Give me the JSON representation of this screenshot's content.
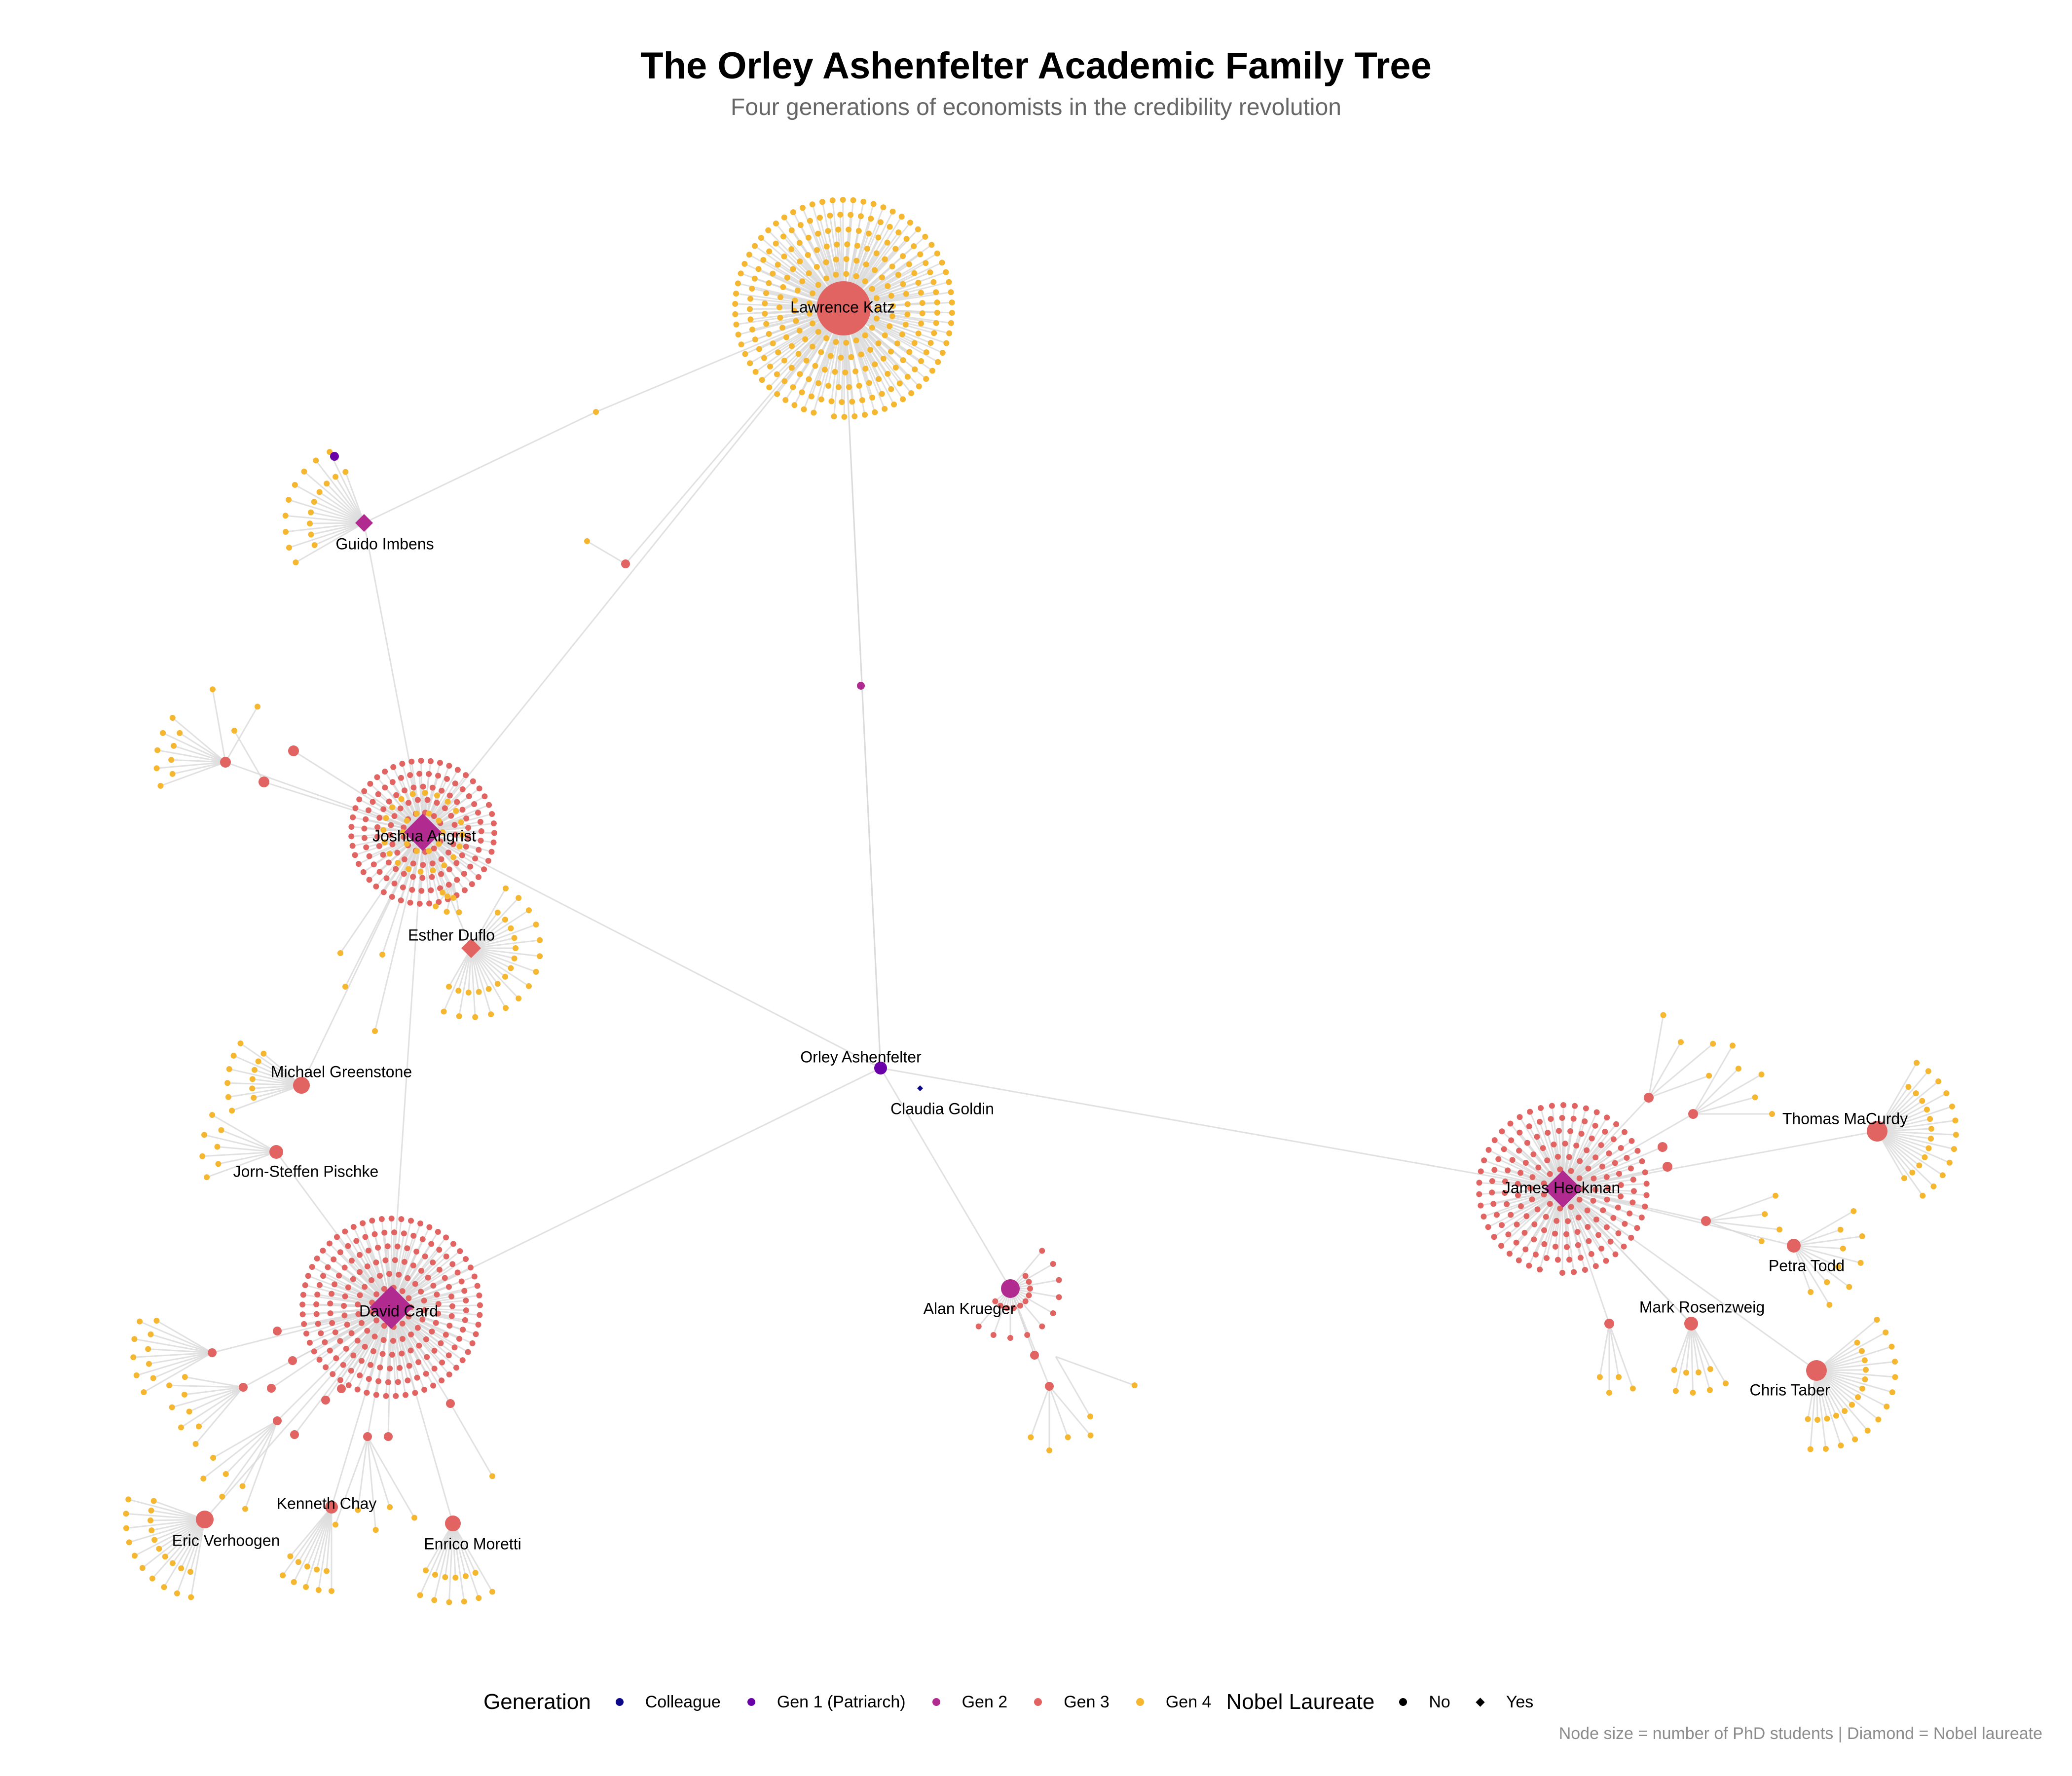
{
  "title": "The Orley Ashenfelter Academic Family Tree",
  "subtitle": "Four generations of economists in the credibility revolution",
  "caption": "Node size = number of PhD students | Diamond = Nobel laureate",
  "colors": {
    "colleague": "#0d0887",
    "gen1": "#6a00a8",
    "gen2": "#b12a90",
    "gen3": "#e16462",
    "gen4": "#f4b72f",
    "edge": "#d9d9d9"
  },
  "legend": {
    "generation_title": "Generation",
    "generation_items": [
      {
        "label": "Colleague",
        "color": "#0d0887"
      },
      {
        "label": "Gen 1 (Patriarch)",
        "color": "#6a00a8"
      },
      {
        "label": "Gen 2",
        "color": "#b12a90"
      },
      {
        "label": "Gen 3",
        "color": "#e16462"
      },
      {
        "label": "Gen 4",
        "color": "#f4b72f"
      }
    ],
    "nobel_title": "Nobel Laureate",
    "nobel_items": [
      {
        "label": "No",
        "shape": "circle"
      },
      {
        "label": "Yes",
        "shape": "diamond"
      }
    ]
  },
  "nodes": [
    {
      "name": "Orley Ashenfelter",
      "generation": "Gen 1 (Patriarch)",
      "nobel": false,
      "parent": null
    },
    {
      "name": "Claudia Goldin",
      "generation": "Colleague",
      "nobel": true,
      "parent": "Orley Ashenfelter"
    },
    {
      "name": "Lawrence Katz",
      "generation": "Gen 3",
      "nobel": false,
      "parent": "Orley Ashenfelter"
    },
    {
      "name": "Joshua Angrist",
      "generation": "Gen 2",
      "nobel": true,
      "parent": "Orley Ashenfelter"
    },
    {
      "name": "David Card",
      "generation": "Gen 2",
      "nobel": true,
      "parent": "Orley Ashenfelter"
    },
    {
      "name": "James Heckman",
      "generation": "Gen 2",
      "nobel": true,
      "parent": "Orley Ashenfelter"
    },
    {
      "name": "Alan Krueger",
      "generation": "Gen 2",
      "nobel": false,
      "parent": "Orley Ashenfelter"
    },
    {
      "name": "Guido Imbens",
      "generation": "Gen 2",
      "nobel": true,
      "parent": "Joshua Angrist"
    },
    {
      "name": "Esther Duflo",
      "generation": "Gen 3",
      "nobel": true,
      "parent": "Joshua Angrist"
    },
    {
      "name": "Michael Greenstone",
      "generation": "Gen 3",
      "nobel": false,
      "parent": "Joshua Angrist"
    },
    {
      "name": "Jorn-Steffen Pischke",
      "generation": "Gen 3",
      "nobel": false,
      "parent": "David Card"
    },
    {
      "name": "Kenneth Chay",
      "generation": "Gen 3",
      "nobel": false,
      "parent": "David Card"
    },
    {
      "name": "Eric Verhoogen",
      "generation": "Gen 3",
      "nobel": false,
      "parent": "David Card"
    },
    {
      "name": "Enrico Moretti",
      "generation": "Gen 3",
      "nobel": false,
      "parent": "David Card"
    },
    {
      "name": "Thomas MaCurdy",
      "generation": "Gen 3",
      "nobel": false,
      "parent": "James Heckman"
    },
    {
      "name": "Petra Todd",
      "generation": "Gen 3",
      "nobel": false,
      "parent": "James Heckman"
    },
    {
      "name": "Mark Rosenzweig",
      "generation": "Gen 3",
      "nobel": false,
      "parent": "James Heckman"
    },
    {
      "name": "Chris Taber",
      "generation": "Gen 3",
      "nobel": false,
      "parent": "James Heckman"
    }
  ]
}
